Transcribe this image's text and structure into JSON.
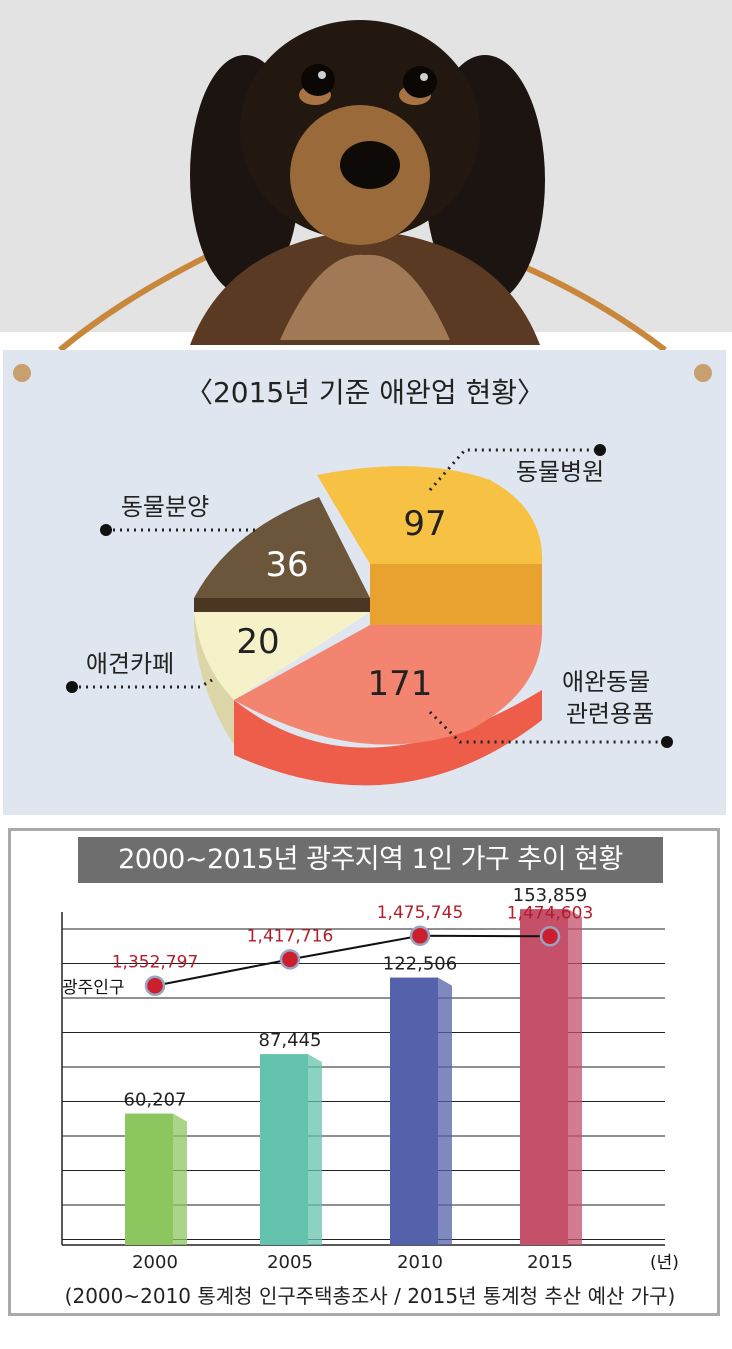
{
  "pie_chart": {
    "title": "〈2015년 기준 애완업 현황〉",
    "slices": [
      {
        "label": "동물병원",
        "value": 97,
        "color": "#f7c143"
      },
      {
        "label": "애완동물\n관련용품",
        "value": 171,
        "color": "#f3846f"
      },
      {
        "label": "애견카페",
        "value": 20,
        "color": "#f5f2c9"
      },
      {
        "label": "동물분양",
        "value": 36,
        "color": "#6b553b"
      }
    ]
  },
  "chart_data": [
    {
      "type": "pie",
      "title": "〈2015년 기준 애완업 현황〉",
      "categories": [
        "동물병원",
        "애완동물 관련용품",
        "애견카페",
        "동물분양"
      ],
      "values": [
        97,
        171,
        20,
        36
      ]
    },
    {
      "type": "bar",
      "title": "2000~2015년 광주지역 1인 가구 추이 현황",
      "categories": [
        "2000",
        "2005",
        "2010",
        "2015"
      ],
      "x_unit": "(년)",
      "series": [
        {
          "name": "",
          "values": [
            60207,
            87445,
            122506,
            153859
          ],
          "colors": [
            "#8dc55f",
            "#64c3ad",
            "#5461ab",
            "#c4506a"
          ]
        },
        {
          "name": "광주인구",
          "type": "line",
          "values": [
            1352797,
            1417716,
            1475745,
            1474603
          ],
          "color": "#cc1f2d"
        }
      ],
      "bar_labels": [
        "60,207",
        "87,445",
        "122,506",
        "153,859"
      ],
      "line_labels": [
        "1,352,797",
        "1,417,716",
        "1,475,745",
        "1,474,603"
      ],
      "line_series_label": "광주인구",
      "ylim": [
        0,
        180000
      ],
      "grid": true,
      "source": "(2000~2010 통계청 인구주택총조사 / 2015년 통계청 추산 예산 가구)"
    }
  ]
}
